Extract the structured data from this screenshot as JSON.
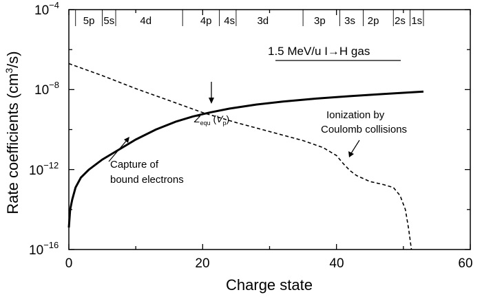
{
  "chart_data": {
    "type": "line",
    "xlabel": "Charge state",
    "ylabel": "Rate coefficients (cm³/s)",
    "ylabel_base": "Rate coefficients (cm",
    "ylabel_sup": "3",
    "ylabel_tail": "/s)",
    "xlim": [
      0,
      60
    ],
    "ylim_log10": [
      -16,
      -4
    ],
    "y_scale": "log",
    "x_ticks": [
      {
        "value": 0,
        "label": "0"
      },
      {
        "value": 20,
        "label": "20"
      },
      {
        "value": 40,
        "label": "40"
      },
      {
        "value": 60,
        "label": "60"
      }
    ],
    "y_ticks": [
      {
        "exp": -4,
        "base": "10",
        "sup": "−4"
      },
      {
        "exp": -8,
        "base": "10",
        "sup": "−8"
      },
      {
        "exp": -12,
        "base": "10",
        "sup": "−12"
      },
      {
        "exp": -16,
        "base": "10",
        "sup": "−16"
      }
    ],
    "shells": [
      {
        "label": "5p",
        "x": 3
      },
      {
        "label": "5s",
        "x": 6
      },
      {
        "label": "4d",
        "x": 11.5
      },
      {
        "label": "4p",
        "x": 20.5
      },
      {
        "label": "4s",
        "x": 24
      },
      {
        "label": "3d",
        "x": 29
      },
      {
        "label": "3p",
        "x": 37.5
      },
      {
        "label": "3s",
        "x": 42
      },
      {
        "label": "2p",
        "x": 45.5
      },
      {
        "label": "2s",
        "x": 49.5
      },
      {
        "label": "1s",
        "x": 52
      }
    ],
    "shell_boundaries": [
      1,
      5,
      7,
      17,
      22.5,
      25,
      35,
      40.5,
      44,
      48.5,
      51,
      53
    ],
    "legend_label": "1.5 MeV/u I→H gas",
    "series": [
      {
        "style": "solid",
        "points": [
          [
            0.0,
            -14.9
          ],
          [
            0.2,
            -14.0
          ],
          [
            0.5,
            -13.5
          ],
          [
            1.0,
            -12.9
          ],
          [
            1.8,
            -12.4
          ],
          [
            3,
            -12.0
          ],
          [
            5,
            -11.5
          ],
          [
            7,
            -11.1
          ],
          [
            10,
            -10.5
          ],
          [
            13,
            -10.0
          ],
          [
            16,
            -9.6
          ],
          [
            18.5,
            -9.35
          ],
          [
            21,
            -9.15
          ],
          [
            24,
            -8.95
          ],
          [
            28,
            -8.75
          ],
          [
            32,
            -8.6
          ],
          [
            37,
            -8.45
          ],
          [
            42,
            -8.33
          ],
          [
            47,
            -8.22
          ],
          [
            50,
            -8.16
          ],
          [
            53,
            -8.1
          ]
        ]
      },
      {
        "style": "dashed",
        "points": [
          [
            0,
            -6.7
          ],
          [
            5,
            -7.3
          ],
          [
            10,
            -7.95
          ],
          [
            15,
            -8.55
          ],
          [
            20,
            -9.15
          ],
          [
            25,
            -9.65
          ],
          [
            30,
            -10.1
          ],
          [
            35,
            -10.55
          ],
          [
            38,
            -10.9
          ],
          [
            40,
            -11.3
          ],
          [
            41,
            -11.7
          ],
          [
            42,
            -12.05
          ],
          [
            43,
            -12.3
          ],
          [
            45,
            -12.6
          ],
          [
            47,
            -12.75
          ],
          [
            48.5,
            -12.9
          ],
          [
            49.5,
            -13.3
          ],
          [
            50.3,
            -14.0
          ],
          [
            50.8,
            -15.0
          ],
          [
            51.2,
            -16.0
          ]
        ]
      }
    ],
    "annotations": {
      "equilibrium": {
        "z": "Z",
        "z_sub": "equ",
        "paren_open": " (",
        "v": "V",
        "v_sub": "p",
        "paren_close": ")",
        "x": 21.2,
        "y_log": -9.3
      },
      "ionization": {
        "line1": "Ionization by",
        "line2": "Coulomb collisions",
        "x": 42,
        "y_log": -12.0
      },
      "capture": {
        "line1": "Capture of",
        "line2": "bound electrons",
        "x": 9.5,
        "y_log": -10.85
      }
    }
  }
}
